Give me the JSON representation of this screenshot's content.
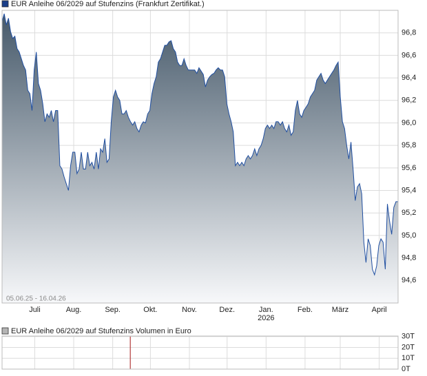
{
  "chart_data": [
    {
      "type": "area",
      "range_label": "05.06.25 - 16.04.26",
      "xlim": [
        "2025-06-05",
        "2026-04-16"
      ],
      "xticks": [
        {
          "value": "2025-07-01",
          "label": "Juli"
        },
        {
          "value": "2025-08-01",
          "label": "Aug."
        },
        {
          "value": "2025-09-01",
          "label": "Sep."
        },
        {
          "value": "2025-10-01",
          "label": "Okt."
        },
        {
          "value": "2025-11-01",
          "label": "Nov."
        },
        {
          "value": "2025-12-01",
          "label": "Dez."
        },
        {
          "value": "2026-01-01",
          "label": "Jan.",
          "sublabel": "2026"
        },
        {
          "value": "2026-02-01",
          "label": "Feb."
        },
        {
          "value": "2026-03-01",
          "label": "März"
        },
        {
          "value": "2026-04-01",
          "label": "April"
        }
      ],
      "ylim": [
        94.4,
        97.0
      ],
      "yticks": [
        {
          "value": 94.6,
          "label": "94,6"
        },
        {
          "value": 94.8,
          "label": "94,8"
        },
        {
          "value": 95.0,
          "label": "95,0"
        },
        {
          "value": 95.2,
          "label": "95,2"
        },
        {
          "value": 95.4,
          "label": "95,4"
        },
        {
          "value": 95.6,
          "label": "95,6"
        },
        {
          "value": 95.8,
          "label": "95,8"
        },
        {
          "value": 96.0,
          "label": "96,0"
        },
        {
          "value": 96.2,
          "label": "96,2"
        },
        {
          "value": 96.4,
          "label": "96,4"
        },
        {
          "value": 96.6,
          "label": "96,6"
        },
        {
          "value": 96.8,
          "label": "96,8"
        }
      ],
      "grid": true,
      "fill_top": "#46596a",
      "fill_bottom": "#f7f8fa",
      "series": [
        {
          "name": "EUR Anleihe 06/2029 auf Stufenzins (Frankfurt Zertifikat.)",
          "color": "#1f4ea0",
          "legend_color": "#1a3f8a",
          "values": [
            96.9,
            96.97,
            96.87,
            96.93,
            96.81,
            96.75,
            96.77,
            96.66,
            96.63,
            96.57,
            96.51,
            96.47,
            96.29,
            96.26,
            96.11,
            96.47,
            96.63,
            96.35,
            96.29,
            96.17,
            96.01,
            96.08,
            96.05,
            96.11,
            96.01,
            96.11,
            96.11,
            95.62,
            95.59,
            95.52,
            95.46,
            95.4,
            95.62,
            95.74,
            95.74,
            95.55,
            95.59,
            95.74,
            95.59,
            95.59,
            95.74,
            95.62,
            95.65,
            95.59,
            95.74,
            95.59,
            95.77,
            95.74,
            95.86,
            95.65,
            95.68,
            96.01,
            96.23,
            96.29,
            96.23,
            96.2,
            96.08,
            96.08,
            96.11,
            96.05,
            96.01,
            95.98,
            96.01,
            95.95,
            95.92,
            95.98,
            96.01,
            96.0,
            96.08,
            96.11,
            96.26,
            96.35,
            96.41,
            96.54,
            96.57,
            96.63,
            96.69,
            96.69,
            96.72,
            96.73,
            96.66,
            96.63,
            96.54,
            96.51,
            96.51,
            96.57,
            96.51,
            96.47,
            96.47,
            96.47,
            96.47,
            96.44,
            96.49,
            96.46,
            96.43,
            96.32,
            96.38,
            96.41,
            96.43,
            96.44,
            96.47,
            96.49,
            96.47,
            96.47,
            96.41,
            96.17,
            96.08,
            96.01,
            95.92,
            95.62,
            95.65,
            95.62,
            95.65,
            95.62,
            95.68,
            95.71,
            95.68,
            95.71,
            95.77,
            95.71,
            95.77,
            95.8,
            95.86,
            95.95,
            95.98,
            95.95,
            95.98,
            95.95,
            96.01,
            96.01,
            95.98,
            96.01,
            95.95,
            95.92,
            95.98,
            95.89,
            95.92,
            96.11,
            96.2,
            96.08,
            96.05,
            96.11,
            96.14,
            96.17,
            96.23,
            96.26,
            96.29,
            96.38,
            96.41,
            96.44,
            96.38,
            96.35,
            96.38,
            96.41,
            96.44,
            96.47,
            96.51,
            96.54,
            96.23,
            96.01,
            95.95,
            95.8,
            95.68,
            95.83,
            95.59,
            95.31,
            95.43,
            95.46,
            95.37,
            94.94,
            94.76,
            94.97,
            94.91,
            94.7,
            94.65,
            94.73,
            94.91,
            94.97,
            94.94,
            94.7,
            95.28,
            95.13,
            95.01,
            95.25,
            95.3,
            95.3
          ]
        }
      ]
    },
    {
      "type": "bar",
      "xlim": [
        "2025-06-05",
        "2026-04-16"
      ],
      "x": [
        "2025-09"
      ],
      "ylim": [
        0,
        30.5
      ],
      "yticks": [
        {
          "value": 0,
          "label": "0T"
        },
        {
          "value": 10,
          "label": "10T"
        },
        {
          "value": 20,
          "label": "20T"
        },
        {
          "value": 30,
          "label": "30T"
        }
      ],
      "grid": true,
      "series": [
        {
          "name": "EUR Anleihe 06/2029 auf Stufenzins Volumen in Euro",
          "color": "#b23a3a",
          "legend_color": "#b4b4b4",
          "values": [
            30
          ]
        }
      ]
    }
  ]
}
